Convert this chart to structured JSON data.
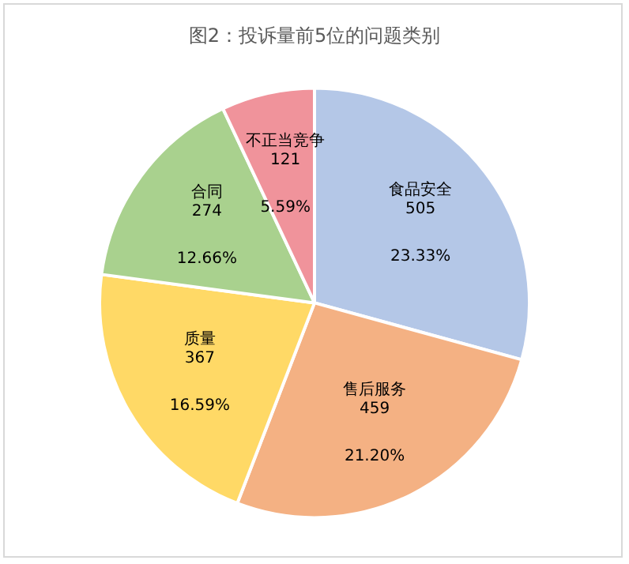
{
  "chart_data": {
    "type": "pie",
    "title": "图2：投诉量前5位的问题类别",
    "categories": [
      "食品安全",
      "售后服务",
      "质量",
      "合同",
      "不正当竞争"
    ],
    "values": [
      505,
      459,
      367,
      274,
      121
    ],
    "colors": [
      "#b4c7e7",
      "#f4b183",
      "#ffd966",
      "#a9d18e",
      "#f0939b"
    ],
    "data_labels": true,
    "annotations": [
      {
        "text": "23.33%",
        "x": "食品安全"
      },
      {
        "text": "21.20%",
        "x": "售后服务"
      },
      {
        "text": "16.59%",
        "x": "质量"
      },
      {
        "text": "12.66%",
        "x": "合同"
      },
      {
        "text": "5.59%",
        "x": "不正当竞争"
      }
    ],
    "legend": false
  }
}
